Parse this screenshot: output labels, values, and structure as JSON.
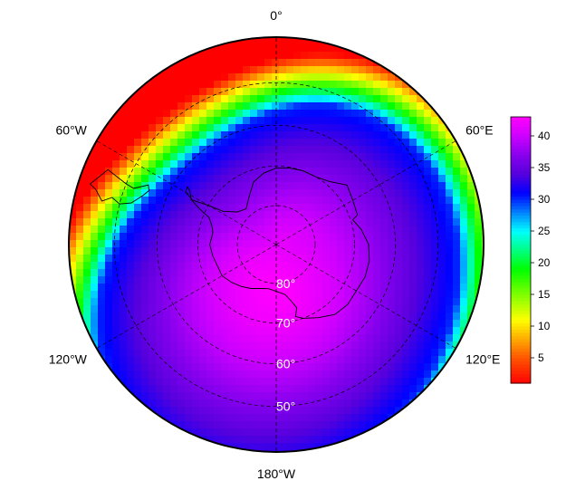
{
  "map": {
    "projection": "south-polar-stereographic",
    "lon_labels": [
      {
        "lon": 0,
        "text": "0°"
      },
      {
        "lon": -60,
        "text": "60°W"
      },
      {
        "lon": 60,
        "text": "60°E"
      },
      {
        "lon": -120,
        "text": "120°W"
      },
      {
        "lon": 120,
        "text": "120°E"
      },
      {
        "lon": 180,
        "text": "180°W"
      }
    ],
    "lat_labels": [
      {
        "lat": -80,
        "text": "80°"
      },
      {
        "lat": -70,
        "text": "70°"
      },
      {
        "lat": -60,
        "text": "60°"
      },
      {
        "lat": -50,
        "text": "50°"
      }
    ],
    "lat_circles": [
      -80,
      -70,
      -60,
      -50
    ],
    "meridians": [
      0,
      60,
      120,
      180,
      240,
      300
    ],
    "outer_lat": -40
  },
  "colorbar": {
    "min": 1,
    "max": 43,
    "ticks": [
      {
        "value": 5,
        "text": "5"
      },
      {
        "value": 10,
        "text": "10"
      },
      {
        "value": 15,
        "text": "15"
      },
      {
        "value": 20,
        "text": "20"
      },
      {
        "value": 25,
        "text": "25"
      },
      {
        "value": 30,
        "text": "30"
      },
      {
        "value": 35,
        "text": "35"
      },
      {
        "value": 40,
        "text": "40"
      }
    ],
    "palette": [
      "#ff0000",
      "#ff5500",
      "#ffaa00",
      "#ffff00",
      "#80ff00",
      "#00ff00",
      "#00ff80",
      "#00ffff",
      "#0080ff",
      "#0000ff",
      "#5500dd",
      "#8800ee",
      "#cc00ff",
      "#ff00ff"
    ],
    "stops": [
      1,
      5,
      8,
      11,
      15,
      19,
      22,
      25,
      28,
      31,
      34,
      37,
      40,
      43
    ]
  },
  "field": {
    "description_units": "colorbar units",
    "center_lon": 180,
    "center_lat": -78,
    "peak_value": 43,
    "vortex_edge_lat": -58,
    "vortex_edge_value": 30,
    "rim_value": 1
  },
  "colors": {
    "gridline": "#000000",
    "boundary": "#000000",
    "coast": "#000000",
    "lat_label": "#ffffff"
  }
}
